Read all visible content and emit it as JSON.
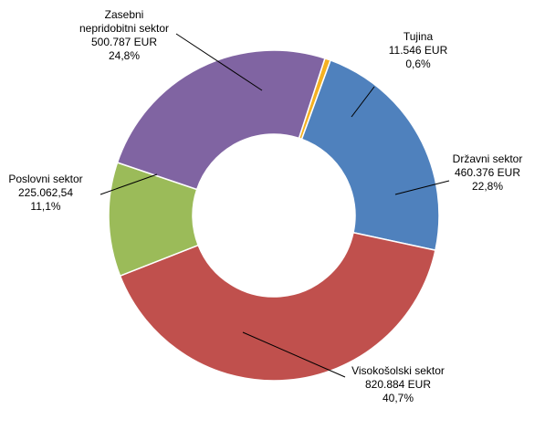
{
  "chart_data": {
    "type": "pie",
    "variant": "doughnut",
    "title": "",
    "legend": "none",
    "slices": [
      {
        "label": "Tujina",
        "amount": "11.546 EUR",
        "percent_text": "0,6%",
        "value": 11546,
        "percent": 0.6,
        "color": "#F4B122"
      },
      {
        "label": "Državni sektor",
        "amount": "460.376 EUR",
        "percent_text": "22,8%",
        "value": 460376,
        "percent": 22.8,
        "color": "#4F81BD"
      },
      {
        "label": "Visokošolski sektor",
        "amount": "820.884 EUR",
        "percent_text": "40,7%",
        "value": 820884,
        "percent": 40.7,
        "color": "#C0504D"
      },
      {
        "label": "Poslovni sektor",
        "amount": "225.062,54",
        "percent_text": "11,1%",
        "value": 225062.54,
        "percent": 11.1,
        "color": "#9BBB59"
      },
      {
        "label": "Zasebni\nnepridobitni sektor",
        "amount": "500.787 EUR",
        "percent_text": "24,8%",
        "value": 500787,
        "percent": 24.8,
        "color": "#8064A2"
      }
    ]
  }
}
